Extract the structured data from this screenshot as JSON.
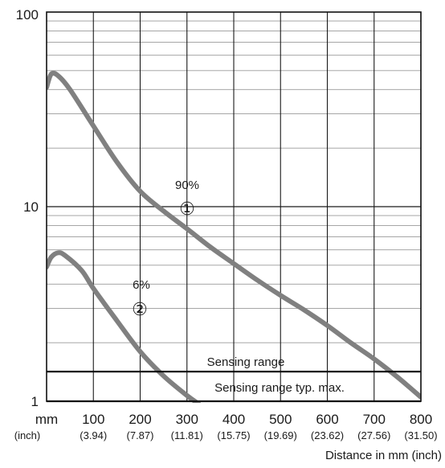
{
  "chart_data": {
    "type": "line",
    "xlabel": "Distance in mm (inch)",
    "x_unit_label": "mm",
    "x_unit_label_secondary": "(inch)",
    "x_ticks": [
      100,
      200,
      300,
      400,
      500,
      600,
      700,
      800
    ],
    "x_ticks_secondary": [
      "(3.94)",
      "(7.87)",
      "(11.81)",
      "(15.75)",
      "(19.69)",
      "(23.62)",
      "(27.56)",
      "(31.50)"
    ],
    "xlim": [
      0,
      800
    ],
    "y_scale": "log",
    "ylim": [
      1,
      100
    ],
    "y_ticks": [
      "1",
      "10",
      "100"
    ],
    "grid": true,
    "series": [
      {
        "name": "90%",
        "marker": "①",
        "color": "#808080",
        "points": [
          [
            0,
            41
          ],
          [
            10,
            48
          ],
          [
            25,
            47
          ],
          [
            50,
            40
          ],
          [
            100,
            26
          ],
          [
            150,
            17
          ],
          [
            200,
            12
          ],
          [
            250,
            9.5
          ],
          [
            300,
            7.7
          ],
          [
            350,
            6.2
          ],
          [
            400,
            5.1
          ],
          [
            450,
            4.2
          ],
          [
            500,
            3.5
          ],
          [
            550,
            2.95
          ],
          [
            600,
            2.45
          ],
          [
            650,
            2.0
          ],
          [
            700,
            1.65
          ],
          [
            750,
            1.33
          ],
          [
            800,
            1.05
          ]
        ]
      },
      {
        "name": "6%",
        "marker": "②",
        "color": "#808080",
        "points": [
          [
            0,
            4.9
          ],
          [
            10,
            5.5
          ],
          [
            25,
            5.8
          ],
          [
            40,
            5.6
          ],
          [
            75,
            4.7
          ],
          [
            100,
            3.8
          ],
          [
            150,
            2.6
          ],
          [
            200,
            1.8
          ],
          [
            250,
            1.35
          ],
          [
            300,
            1.07
          ],
          [
            325,
            0.97
          ]
        ]
      }
    ],
    "reference_lines": [
      {
        "label": "Sensing range",
        "y": 1.42
      },
      {
        "label": "Sensing range typ. max.",
        "y": 1.0
      }
    ]
  }
}
